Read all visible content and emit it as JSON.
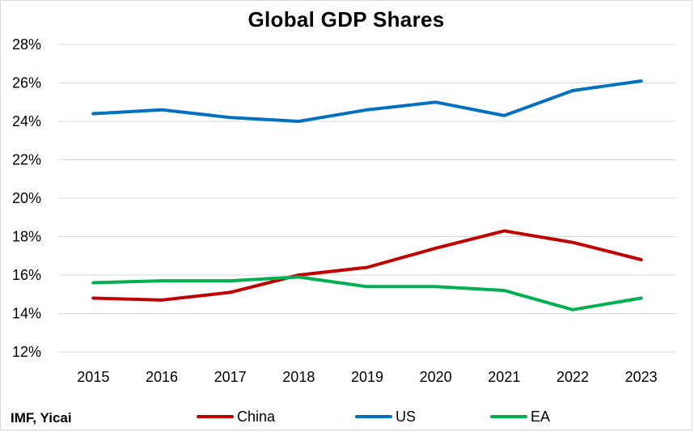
{
  "chart_data": {
    "type": "line",
    "title": "Global GDP Shares",
    "source": "IMF, Yicai",
    "xlabel": "",
    "ylabel": "",
    "x": [
      "2015",
      "2016",
      "2017",
      "2018",
      "2019",
      "2020",
      "2021",
      "2022",
      "2023"
    ],
    "ylim": [
      12,
      28
    ],
    "yticks": [
      12,
      14,
      16,
      18,
      20,
      22,
      24,
      26,
      28
    ],
    "ytick_labels": [
      "12%",
      "14%",
      "16%",
      "18%",
      "20%",
      "22%",
      "24%",
      "26%",
      "28%"
    ],
    "grid": true,
    "legend_position": "bottom",
    "series": [
      {
        "name": "China",
        "color": "#c00000",
        "values": [
          14.8,
          14.7,
          15.1,
          16.0,
          16.4,
          17.4,
          18.3,
          17.7,
          16.8
        ]
      },
      {
        "name": "US",
        "color": "#0070c0",
        "values": [
          24.4,
          24.6,
          24.2,
          24.0,
          24.6,
          25.0,
          24.3,
          25.6,
          26.1
        ]
      },
      {
        "name": "EA",
        "color": "#00b050",
        "values": [
          15.6,
          15.7,
          15.7,
          15.9,
          15.4,
          15.4,
          15.2,
          14.2,
          14.8
        ]
      }
    ]
  }
}
